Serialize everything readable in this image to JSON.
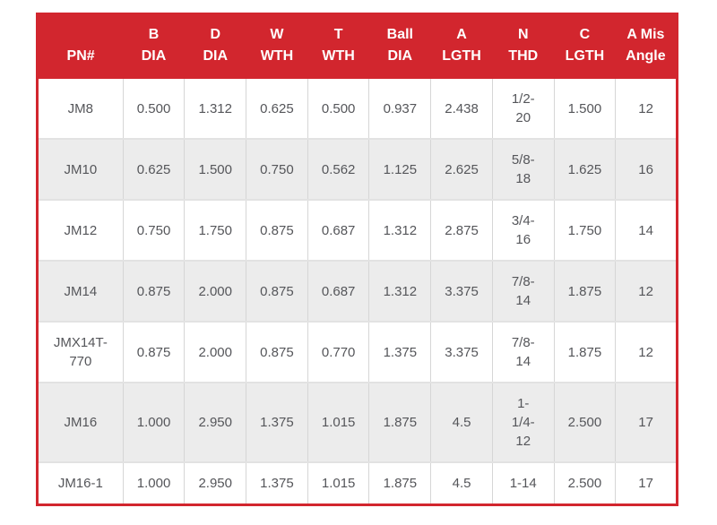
{
  "colors": {
    "header_bg": "#d2262e",
    "header_text": "#ffffff",
    "body_text": "#55565a",
    "stripe_bg": "#ececec",
    "grid_line": "#d6d6d6"
  },
  "table": {
    "columns": [
      "PN#",
      "B\nDIA",
      "D\nDIA",
      "W\nWTH",
      "T\nWTH",
      "Ball\nDIA",
      "A\nLGTH",
      "N\nTHD",
      "C\nLGTH",
      "A Mis\nAngle"
    ],
    "rows": [
      [
        "JM8",
        "0.500",
        "1.312",
        "0.625",
        "0.500",
        "0.937",
        "2.438",
        "1/2-\n20",
        "1.500",
        "12"
      ],
      [
        "JM10",
        "0.625",
        "1.500",
        "0.750",
        "0.562",
        "1.125",
        "2.625",
        "5/8-\n18",
        "1.625",
        "16"
      ],
      [
        "JM12",
        "0.750",
        "1.750",
        "0.875",
        "0.687",
        "1.312",
        "2.875",
        "3/4-\n16",
        "1.750",
        "14"
      ],
      [
        "JM14",
        "0.875",
        "2.000",
        "0.875",
        "0.687",
        "1.312",
        "3.375",
        "7/8-\n14",
        "1.875",
        "12"
      ],
      [
        "JMX14T-\n770",
        "0.875",
        "2.000",
        "0.875",
        "0.770",
        "1.375",
        "3.375",
        "7/8-\n14",
        "1.875",
        "12"
      ],
      [
        "JM16",
        "1.000",
        "2.950",
        "1.375",
        "1.015",
        "1.875",
        "4.5",
        "1-\n1/4-\n12",
        "2.500",
        "17"
      ],
      [
        "JM16-1",
        "1.000",
        "2.950",
        "1.375",
        "1.015",
        "1.875",
        "4.5",
        "1-14",
        "2.500",
        "17"
      ]
    ]
  }
}
